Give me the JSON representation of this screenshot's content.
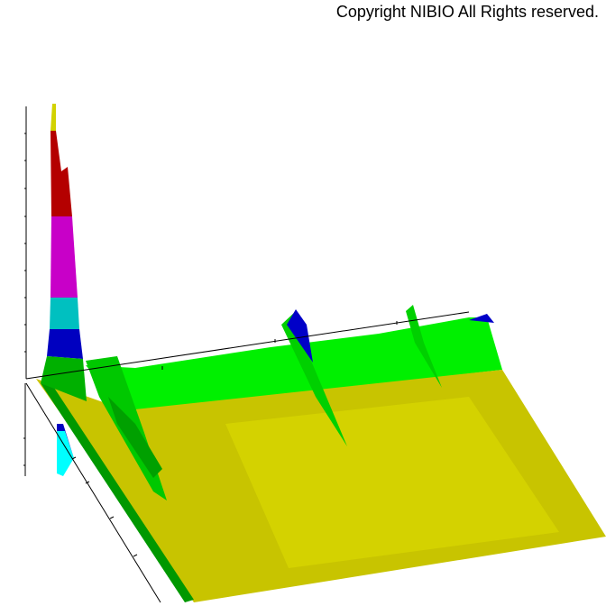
{
  "copyright": "Copyright NIBIO All Rights reserved.",
  "chart_data": {
    "type": "surface",
    "title": "",
    "view": "3d",
    "colors": {
      "level1": "#c8c000",
      "level2": "#00ff00",
      "level3": "#00b400",
      "level4": "#0000c8",
      "level5": "#00c8c8",
      "level6": "#c800c8",
      "level7": "#b40000",
      "peak_top": "#d2d200"
    }
  }
}
